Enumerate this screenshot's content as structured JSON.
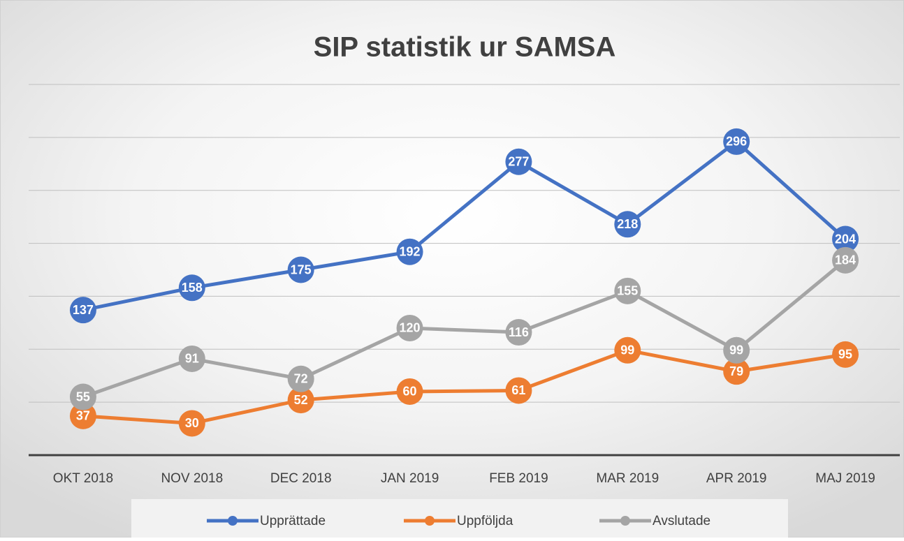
{
  "chart_data": {
    "type": "line",
    "title": "SIP statistik ur SAMSA",
    "categories": [
      "OKT 2018",
      "NOV 2018",
      "DEC 2018",
      "JAN 2019",
      "FEB 2019",
      "MAR 2019",
      "APR 2019",
      "MAJ 2019"
    ],
    "series": [
      {
        "name": "Upprättade",
        "color": "#4472c4",
        "values": [
          137,
          158,
          175,
          192,
          277,
          218,
          296,
          204
        ]
      },
      {
        "name": "Uppföljda",
        "color": "#ed7d31",
        "values": [
          37,
          30,
          52,
          60,
          61,
          99,
          79,
          95
        ]
      },
      {
        "name": "Avslutade",
        "color": "#a5a5a5",
        "values": [
          55,
          91,
          72,
          120,
          116,
          155,
          99,
          184
        ]
      }
    ],
    "ylim": [
      0,
      350
    ],
    "yticks": [
      0,
      50,
      100,
      150,
      200,
      250,
      300,
      350
    ],
    "grid": true,
    "legend": "bottom"
  }
}
